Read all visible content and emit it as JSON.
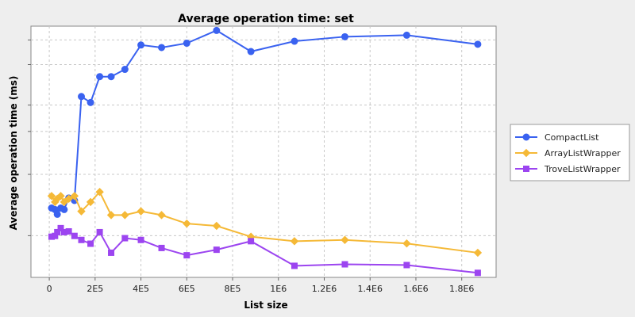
{
  "chart_data": {
    "type": "line",
    "title": "Average operation time: set",
    "xlabel": "List size",
    "ylabel": "Average operation time (ms)",
    "xlim": [
      -80000,
      1950000
    ],
    "ylim": [
      0,
      1
    ],
    "x_ticks": [
      {
        "value": 0,
        "label": "0"
      },
      {
        "value": 200000,
        "label": "2E5"
      },
      {
        "value": 400000,
        "label": "4E5"
      },
      {
        "value": 600000,
        "label": "6E5"
      },
      {
        "value": 800000,
        "label": "8E5"
      },
      {
        "value": 1000000,
        "label": "1E6"
      },
      {
        "value": 1200000,
        "label": "1.2E6"
      },
      {
        "value": 1400000,
        "label": "1.4E6"
      },
      {
        "value": 1600000,
        "label": "1.6E6"
      },
      {
        "value": 1800000,
        "label": "1.8E6"
      }
    ],
    "y_ticks": [
      0.166,
      0.41,
      0.581,
      0.686,
      0.847,
      0.945
    ],
    "y_tick_labels_visible": false,
    "grid": true,
    "legend_position": "right",
    "series": [
      {
        "name": "CompactList",
        "color": "#3a62f0",
        "marker": "circle",
        "x": [
          10000,
          25000,
          35000,
          50000,
          65000,
          85000,
          110000,
          140000,
          180000,
          220000,
          270000,
          330000,
          400000,
          490000,
          600000,
          730000,
          880000,
          1070000,
          1290000,
          1560000,
          1870000
        ],
        "y": [
          0.276,
          0.27,
          0.251,
          0.276,
          0.27,
          0.316,
          0.306,
          0.72,
          0.696,
          0.799,
          0.799,
          0.828,
          0.925,
          0.915,
          0.932,
          0.983,
          0.899,
          0.94,
          0.958,
          0.964,
          0.928
        ]
      },
      {
        "name": "ArrayListWrapper",
        "color": "#f5b937",
        "marker": "diamond",
        "x": [
          10000,
          25000,
          35000,
          50000,
          65000,
          85000,
          110000,
          140000,
          180000,
          220000,
          270000,
          330000,
          400000,
          490000,
          600000,
          730000,
          880000,
          1070000,
          1290000,
          1560000,
          1870000
        ],
        "y": [
          0.324,
          0.3,
          0.313,
          0.324,
          0.3,
          0.313,
          0.324,
          0.263,
          0.3,
          0.34,
          0.248,
          0.248,
          0.263,
          0.248,
          0.214,
          0.205,
          0.162,
          0.144,
          0.149,
          0.135,
          0.098
        ]
      },
      {
        "name": "TroveListWrapper",
        "color": "#9c45f0",
        "marker": "square",
        "x": [
          10000,
          25000,
          35000,
          50000,
          65000,
          85000,
          110000,
          140000,
          180000,
          220000,
          270000,
          330000,
          400000,
          490000,
          600000,
          730000,
          880000,
          1070000,
          1290000,
          1560000,
          1870000
        ],
        "y": [
          0.162,
          0.165,
          0.18,
          0.196,
          0.18,
          0.183,
          0.165,
          0.149,
          0.134,
          0.18,
          0.098,
          0.156,
          0.149,
          0.117,
          0.088,
          0.11,
          0.144,
          0.046,
          0.052,
          0.049,
          0.018
        ]
      }
    ]
  }
}
